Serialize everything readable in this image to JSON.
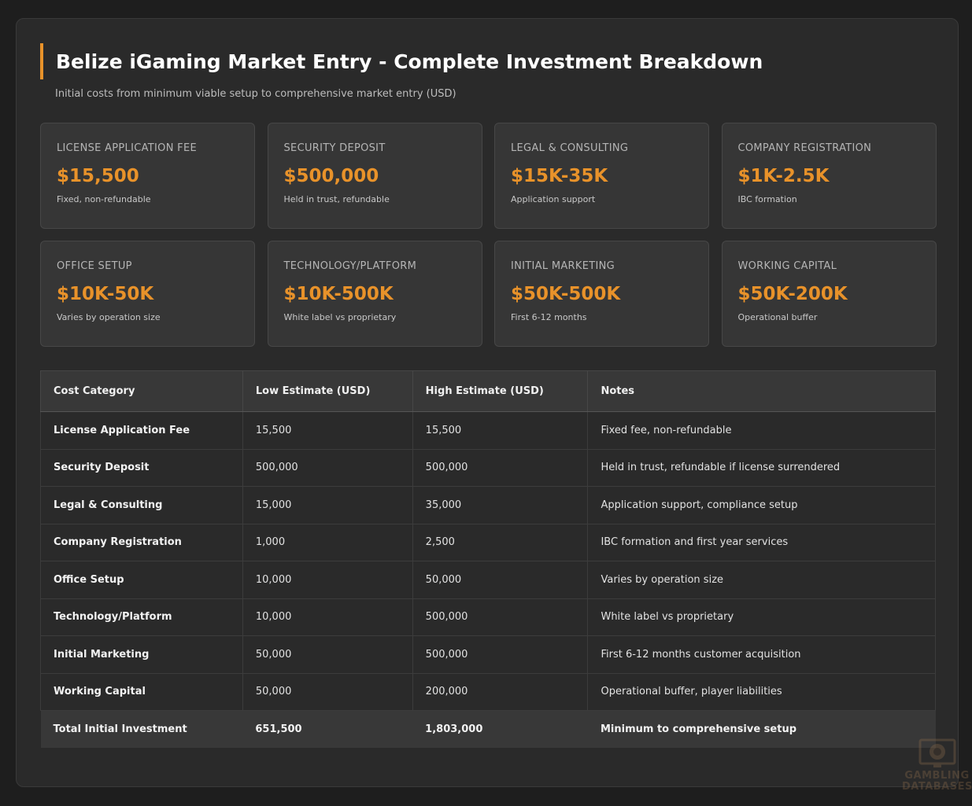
{
  "header": {
    "title": "Belize iGaming Market Entry - Complete Investment Breakdown",
    "subtitle": "Initial costs from minimum viable setup to comprehensive market entry (USD)"
  },
  "cards": [
    {
      "label": "LICENSE APPLICATION FEE",
      "value": "$15,500",
      "note": "Fixed, non-refundable"
    },
    {
      "label": "SECURITY DEPOSIT",
      "value": "$500,000",
      "note": "Held in trust, refundable"
    },
    {
      "label": "LEGAL & CONSULTING",
      "value": "$15K-35K",
      "note": "Application support"
    },
    {
      "label": "COMPANY REGISTRATION",
      "value": "$1K-2.5K",
      "note": "IBC formation"
    },
    {
      "label": "OFFICE SETUP",
      "value": "$10K-50K",
      "note": "Varies by operation size"
    },
    {
      "label": "TECHNOLOGY/PLATFORM",
      "value": "$10K-500K",
      "note": "White label vs proprietary"
    },
    {
      "label": "INITIAL MARKETING",
      "value": "$50K-500K",
      "note": "First 6-12 months"
    },
    {
      "label": "WORKING CAPITAL",
      "value": "$50K-200K",
      "note": "Operational buffer"
    }
  ],
  "table": {
    "headers": [
      "Cost Category",
      "Low Estimate (USD)",
      "High Estimate (USD)",
      "Notes"
    ],
    "rows": [
      [
        "License Application Fee",
        "15,500",
        "15,500",
        "Fixed fee, non-refundable"
      ],
      [
        "Security Deposit",
        "500,000",
        "500,000",
        "Held in trust, refundable if license surrendered"
      ],
      [
        "Legal & Consulting",
        "15,000",
        "35,000",
        "Application support, compliance setup"
      ],
      [
        "Company Registration",
        "1,000",
        "2,500",
        "IBC formation and first year services"
      ],
      [
        "Office Setup",
        "10,000",
        "50,000",
        "Varies by operation size"
      ],
      [
        "Technology/Platform",
        "10,000",
        "500,000",
        "White label vs proprietary"
      ],
      [
        "Initial Marketing",
        "50,000",
        "500,000",
        "First 6-12 months customer acquisition"
      ],
      [
        "Working Capital",
        "50,000",
        "200,000",
        "Operational buffer, player liabilities"
      ]
    ],
    "total": [
      "Total Initial Investment",
      "651,500",
      "1,803,000",
      "Minimum to comprehensive setup"
    ]
  },
  "watermark": {
    "line1": "GAMBLING",
    "line2": "DATABASES",
    "icon": "chip-monitor-icon"
  },
  "colors": {
    "accent": "#e8922a",
    "background": "#1e1e1e",
    "panel": "#2a2a2a",
    "card": "#363636"
  }
}
